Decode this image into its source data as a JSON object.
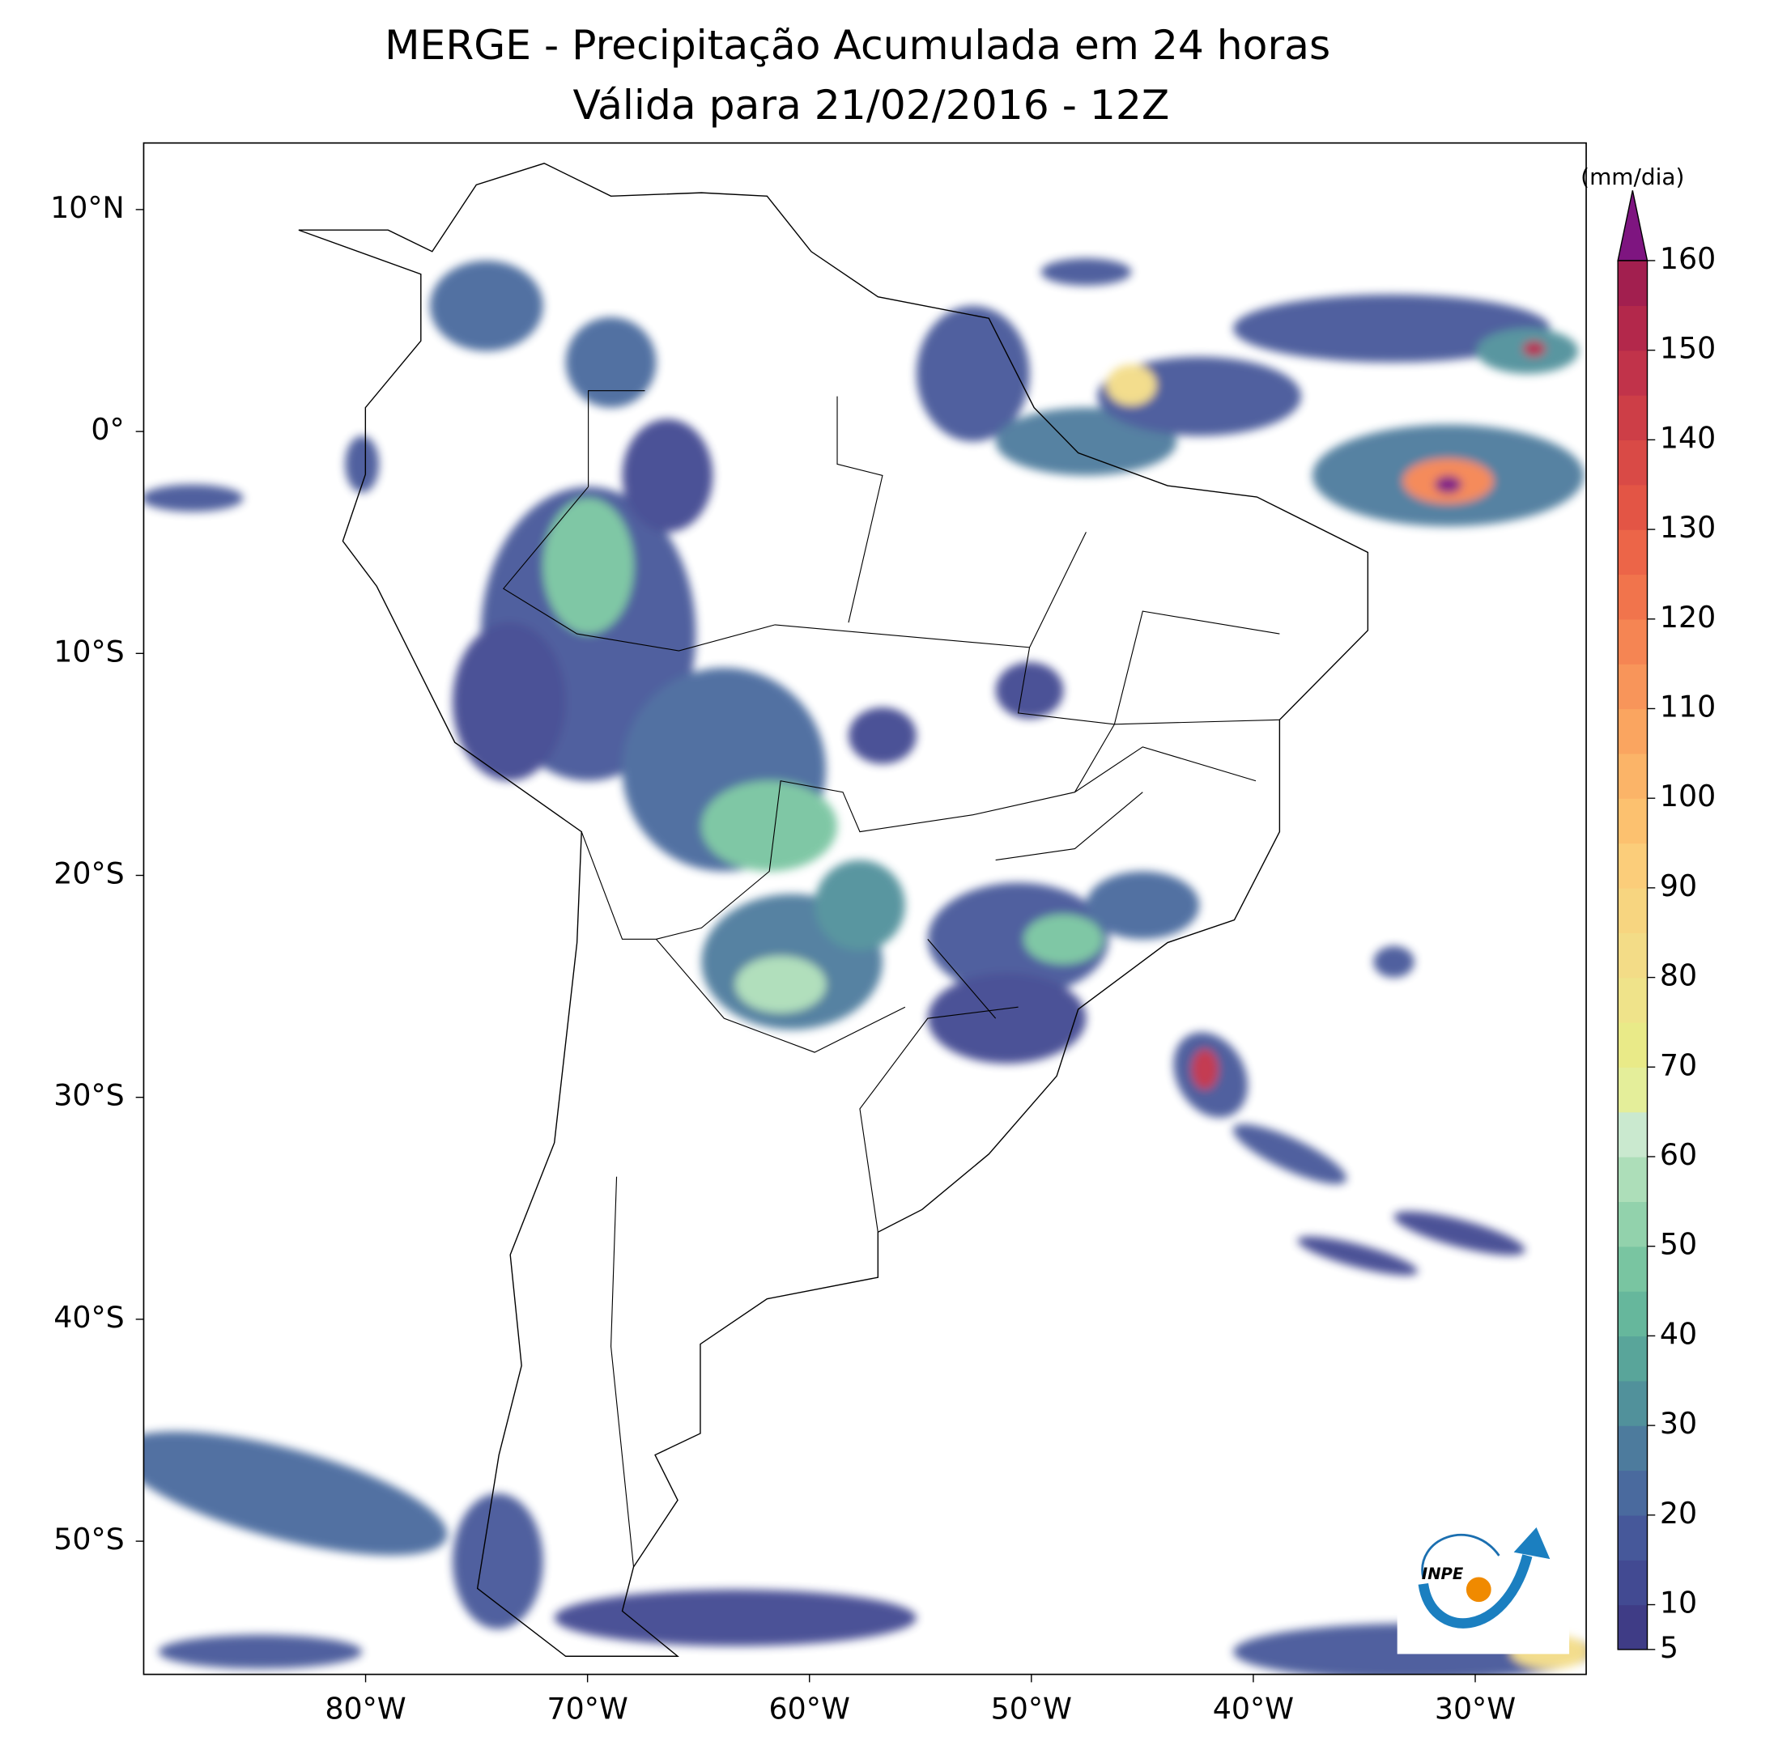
{
  "title": "MERGE - Precipitação Acumulada em 24 horas",
  "subtitle": "Válida para 21/02/2016 - 12Z",
  "map": {
    "xlim": [
      -90,
      -25
    ],
    "ylim": [
      -56,
      13
    ],
    "xticks": [
      {
        "value": -80,
        "label": "80°W"
      },
      {
        "value": -70,
        "label": "70°W"
      },
      {
        "value": -60,
        "label": "60°W"
      },
      {
        "value": -50,
        "label": "50°W"
      },
      {
        "value": -40,
        "label": "40°W"
      },
      {
        "value": -30,
        "label": "30°W"
      }
    ],
    "yticks": [
      {
        "value": 10,
        "label": "10°N"
      },
      {
        "value": 0,
        "label": "0°"
      },
      {
        "value": -10,
        "label": "10°S"
      },
      {
        "value": -20,
        "label": "20°S"
      },
      {
        "value": -30,
        "label": "30°S"
      },
      {
        "value": -40,
        "label": "40°S"
      },
      {
        "value": -50,
        "label": "50°S"
      }
    ]
  },
  "colorbar": {
    "label": "(mm/dia)",
    "lim": [
      5,
      160
    ],
    "ticks": [
      5,
      10,
      20,
      30,
      40,
      50,
      60,
      70,
      80,
      90,
      100,
      110,
      120,
      130,
      140,
      150,
      160
    ],
    "colors": [
      "#3f3c86",
      "#424a92",
      "#46589a",
      "#4a6a9e",
      "#4d7b9d",
      "#51919b",
      "#59a59a",
      "#66b79c",
      "#79c5a1",
      "#92d2ac",
      "#addeb9",
      "#cae9cf",
      "#e4ee9a",
      "#e9ea88",
      "#efe38a",
      "#f3dc87",
      "#f7d580",
      "#fbcd7a",
      "#fcc16f",
      "#fbb468",
      "#faa560",
      "#f8955a",
      "#f58553",
      "#f1744c",
      "#ec6548",
      "#e35545",
      "#d94a46",
      "#cd3e47",
      "#c1334a",
      "#b3284b",
      "#a21f4f"
    ],
    "extend_color": "#7e1580"
  },
  "logo_text": "INPE"
}
